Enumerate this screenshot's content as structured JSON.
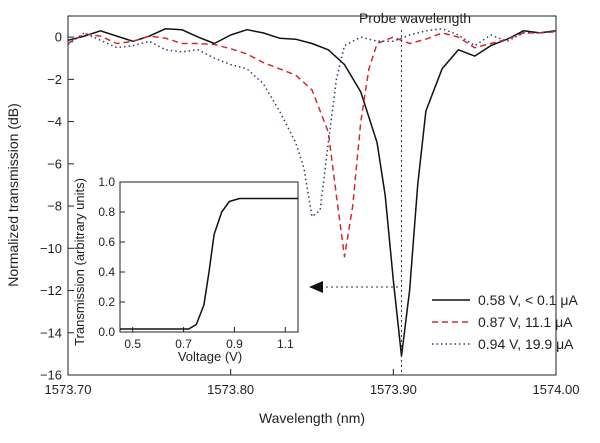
{
  "chart_data": [
    {
      "type": "line",
      "xlabel": "Wavelength (nm)",
      "ylabel": "Normalized transmission (dB)",
      "xlim": [
        1573.7,
        1574.0
      ],
      "ylim": [
        -16,
        1
      ],
      "xticks": [
        "1573.70",
        "1573.80",
        "1573.90",
        "1574.00"
      ],
      "yticks": [
        "0",
        "-2",
        "-4",
        "-6",
        "-8",
        "-10",
        "-12",
        "-14",
        "-16"
      ],
      "legend_position": "bottom-right",
      "annotation": {
        "text": "Probe wavelength",
        "x": 1573.905
      },
      "colors": {
        "black": "#111111",
        "red": "#d42a2a",
        "blue": "#2c3e6e"
      },
      "series": [
        {
          "name": "0.58 V, < 0.1 μA",
          "style": "solid",
          "color": "#111111",
          "points": [
            [
              1573.7,
              -0.15
            ],
            [
              1573.71,
              0.05
            ],
            [
              1573.72,
              0.3
            ],
            [
              1573.73,
              0.05
            ],
            [
              1573.74,
              -0.2
            ],
            [
              1573.75,
              0.05
            ],
            [
              1573.76,
              0.4
            ],
            [
              1573.77,
              0.35
            ],
            [
              1573.78,
              0.0
            ],
            [
              1573.79,
              -0.3
            ],
            [
              1573.8,
              0.1
            ],
            [
              1573.81,
              0.35
            ],
            [
              1573.82,
              0.2
            ],
            [
              1573.83,
              -0.05
            ],
            [
              1573.84,
              -0.1
            ],
            [
              1573.85,
              -0.3
            ],
            [
              1573.86,
              -0.6
            ],
            [
              1573.87,
              -1.3
            ],
            [
              1573.88,
              -2.6
            ],
            [
              1573.89,
              -5.0
            ],
            [
              1573.895,
              -7.5
            ],
            [
              1573.9,
              -11.5
            ],
            [
              1573.905,
              -15.1
            ],
            [
              1573.91,
              -12.0
            ],
            [
              1573.915,
              -7.0
            ],
            [
              1573.92,
              -3.5
            ],
            [
              1573.93,
              -1.5
            ],
            [
              1573.94,
              -0.6
            ],
            [
              1573.95,
              -0.9
            ],
            [
              1573.96,
              -0.4
            ],
            [
              1573.97,
              -0.1
            ],
            [
              1573.98,
              0.3
            ],
            [
              1573.99,
              0.2
            ],
            [
              1574.0,
              0.3
            ]
          ]
        },
        {
          "name": "0.87 V, 11.1 μA",
          "style": "dashed",
          "color": "#d42a2a",
          "points": [
            [
              1573.7,
              -0.3
            ],
            [
              1573.71,
              0.15
            ],
            [
              1573.72,
              0.05
            ],
            [
              1573.73,
              -0.3
            ],
            [
              1573.74,
              -0.2
            ],
            [
              1573.75,
              0.05
            ],
            [
              1573.76,
              -0.05
            ],
            [
              1573.77,
              -0.3
            ],
            [
              1573.78,
              -0.3
            ],
            [
              1573.79,
              -0.35
            ],
            [
              1573.8,
              -0.55
            ],
            [
              1573.81,
              -0.8
            ],
            [
              1573.82,
              -1.2
            ],
            [
              1573.83,
              -1.5
            ],
            [
              1573.84,
              -1.8
            ],
            [
              1573.85,
              -2.5
            ],
            [
              1573.86,
              -4.5
            ],
            [
              1573.865,
              -7.5
            ],
            [
              1573.87,
              -10.4
            ],
            [
              1573.875,
              -8.0
            ],
            [
              1573.88,
              -4.0
            ],
            [
              1573.885,
              -1.5
            ],
            [
              1573.89,
              -0.3
            ],
            [
              1573.9,
              0.0
            ],
            [
              1573.91,
              -0.3
            ],
            [
              1573.92,
              -0.1
            ],
            [
              1573.93,
              0.2
            ],
            [
              1573.94,
              0.0
            ],
            [
              1573.95,
              -0.5
            ],
            [
              1573.96,
              -0.3
            ],
            [
              1573.97,
              -0.1
            ],
            [
              1573.98,
              0.2
            ],
            [
              1573.99,
              0.2
            ],
            [
              1574.0,
              0.25
            ]
          ]
        },
        {
          "name": "0.94 V, 19.9 μA",
          "style": "dotted",
          "color": "#2c3e6e",
          "points": [
            [
              1573.7,
              -0.35
            ],
            [
              1573.71,
              0.2
            ],
            [
              1573.72,
              -0.15
            ],
            [
              1573.73,
              -0.5
            ],
            [
              1573.74,
              -0.4
            ],
            [
              1573.75,
              -0.2
            ],
            [
              1573.76,
              -0.6
            ],
            [
              1573.77,
              -0.7
            ],
            [
              1573.78,
              -0.6
            ],
            [
              1573.79,
              -1.0
            ],
            [
              1573.8,
              -1.3
            ],
            [
              1573.81,
              -1.5
            ],
            [
              1573.82,
              -2.2
            ],
            [
              1573.83,
              -3.5
            ],
            [
              1573.84,
              -5.0
            ],
            [
              1573.845,
              -6.2
            ],
            [
              1573.85,
              -8.5
            ],
            [
              1573.855,
              -8.2
            ],
            [
              1573.86,
              -5.0
            ],
            [
              1573.865,
              -2.0
            ],
            [
              1573.87,
              -0.4
            ],
            [
              1573.88,
              0.0
            ],
            [
              1573.89,
              -0.2
            ],
            [
              1573.9,
              -0.2
            ],
            [
              1573.91,
              0.1
            ],
            [
              1573.92,
              0.3
            ],
            [
              1573.93,
              0.4
            ],
            [
              1573.94,
              0.1
            ],
            [
              1573.95,
              -0.4
            ],
            [
              1573.96,
              0.1
            ],
            [
              1573.97,
              -0.2
            ],
            [
              1573.98,
              0.2
            ],
            [
              1573.99,
              0.2
            ],
            [
              1574.0,
              0.3
            ]
          ]
        }
      ]
    },
    {
      "type": "line",
      "xlabel": "Voltage (V)",
      "ylabel": "Transmission (arbitrary units)",
      "xlim": [
        0.45,
        1.15
      ],
      "ylim": [
        0,
        1.0
      ],
      "xticks": [
        "0.5",
        "0.7",
        "0.9",
        "1.1"
      ],
      "yticks": [
        "0.0",
        "0.2",
        "0.4",
        "0.6",
        "0.8",
        "1.0"
      ],
      "series": [
        {
          "style": "solid",
          "color": "#111111",
          "points": [
            [
              0.45,
              0.02
            ],
            [
              0.6,
              0.02
            ],
            [
              0.72,
              0.02
            ],
            [
              0.75,
              0.05
            ],
            [
              0.78,
              0.18
            ],
            [
              0.8,
              0.4
            ],
            [
              0.82,
              0.65
            ],
            [
              0.85,
              0.8
            ],
            [
              0.88,
              0.87
            ],
            [
              0.92,
              0.89
            ],
            [
              1.0,
              0.89
            ],
            [
              1.1,
              0.89
            ],
            [
              1.15,
              0.89
            ]
          ]
        }
      ]
    }
  ]
}
